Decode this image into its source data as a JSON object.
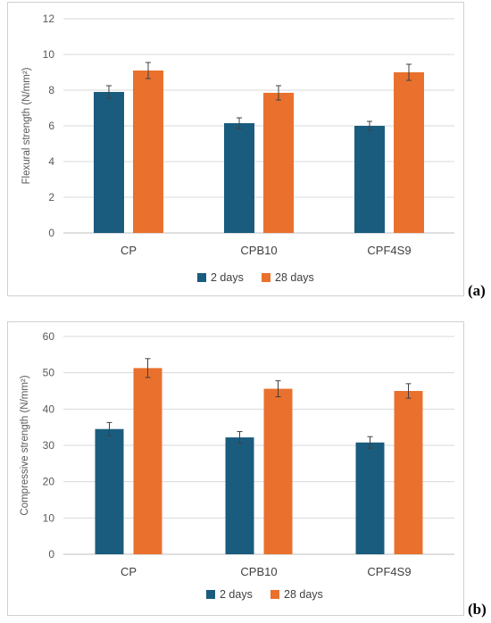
{
  "chart_data": [
    {
      "id": "a",
      "panel_label": "(a)",
      "type": "bar",
      "categories": [
        "CP",
        "CPB10",
        "CPF4S9"
      ],
      "series": [
        {
          "name": "2 days",
          "color": "#1a5c7e",
          "values": [
            7.9,
            6.15,
            6.0
          ],
          "errors": [
            0.35,
            0.3,
            0.25
          ]
        },
        {
          "name": "28 days",
          "color": "#e9712d",
          "values": [
            9.1,
            7.85,
            9.0
          ],
          "errors": [
            0.45,
            0.4,
            0.45
          ]
        }
      ],
      "ylabel": "Flexural strength  (N/mm²)",
      "ylim": [
        0,
        12
      ],
      "yticks": [
        0,
        2,
        4,
        6,
        8,
        10,
        12
      ],
      "grid": true,
      "legend": "bottom"
    },
    {
      "id": "b",
      "panel_label": "(b)",
      "type": "bar",
      "categories": [
        "CP",
        "CPB10",
        "CPF4S9"
      ],
      "series": [
        {
          "name": "2 days",
          "color": "#1a5c7e",
          "values": [
            34.5,
            32.2,
            30.8
          ],
          "errors": [
            1.8,
            1.6,
            1.6
          ]
        },
        {
          "name": "28 days",
          "color": "#e9712d",
          "values": [
            51.3,
            45.6,
            45.0
          ],
          "errors": [
            2.6,
            2.2,
            2.0
          ]
        }
      ],
      "ylabel": "Compressive strength  (N/mm²)",
      "ylim": [
        0,
        60
      ],
      "yticks": [
        0,
        10,
        20,
        30,
        40,
        50,
        60
      ],
      "grid": true,
      "legend": "bottom"
    }
  ]
}
